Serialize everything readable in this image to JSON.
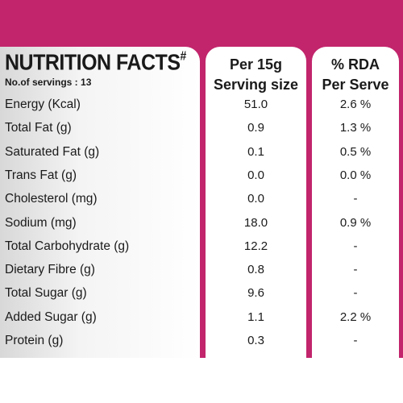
{
  "title": "NUTRITION FACTS",
  "title_mark": "#",
  "servings": "No.of servings : 13",
  "headers": {
    "serving_line1": "Per 15g",
    "serving_line2": "Serving size",
    "rda_line1": "% RDA",
    "rda_line2": "Per Serve"
  },
  "rows": [
    {
      "label": "Energy (Kcal)",
      "serving": "51.0",
      "rda": "2.6 %"
    },
    {
      "label": "Total Fat (g)",
      "serving": "0.9",
      "rda": "1.3 %"
    },
    {
      "label": "Saturated Fat (g)",
      "serving": "0.1",
      "rda": "0.5 %"
    },
    {
      "label": "Trans Fat (g)",
      "serving": "0.0",
      "rda": "0.0 %"
    },
    {
      "label": "Cholesterol (mg)",
      "serving": "0.0",
      "rda": "-"
    },
    {
      "label": "Sodium (mg)",
      "serving": "18.0",
      "rda": "0.9 %"
    },
    {
      "label": "Total Carbohydrate (g)",
      "serving": "12.2",
      "rda": "-"
    },
    {
      "label": "Dietary Fibre (g)",
      "serving": "0.8",
      "rda": "-"
    },
    {
      "label": "Total Sugar (g)",
      "serving": "9.6",
      "rda": "-"
    },
    {
      "label": "Added Sugar (g)",
      "serving": "1.1",
      "rda": "2.2 %"
    },
    {
      "label": "Protein (g)",
      "serving": "0.3",
      "rda": "-"
    }
  ],
  "colors": {
    "frame": "#c2256c",
    "background": "#ffffff"
  }
}
